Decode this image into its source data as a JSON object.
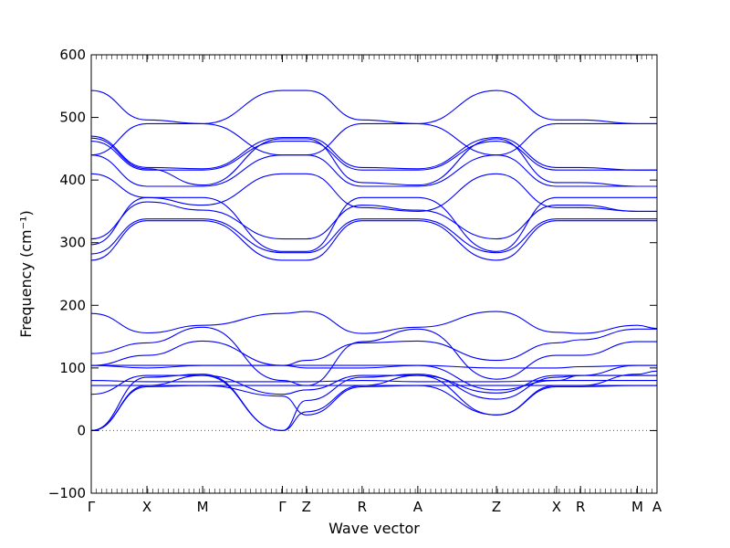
{
  "chart_data": {
    "type": "line",
    "xlabel": "Wave vector",
    "ylabel": "Frequency (cm⁻¹)",
    "ylim": [
      -100,
      600
    ],
    "yticks": [
      -100,
      0,
      100,
      200,
      300,
      400,
      500,
      600
    ],
    "grid": false,
    "zero_line": {
      "y": 0,
      "style": "dotted",
      "color": "#555555"
    },
    "series_color": "#0000ff",
    "path_labels": [
      "Γ",
      "X",
      "M",
      "Γ",
      "Z",
      "R",
      "A",
      "Z",
      "X",
      "R",
      "M",
      "A"
    ],
    "path_positions": [
      0.0,
      0.51,
      1.02,
      1.75,
      1.97,
      2.48,
      2.99,
      3.71,
      4.26,
      4.48,
      5.0,
      5.18
    ],
    "x_range": [
      0.0,
      5.18
    ],
    "bands": [
      {
        "points": [
          [
            0,
            0
          ],
          [
            0.51,
            70
          ],
          [
            1.02,
            72
          ],
          [
            1.75,
            55
          ],
          [
            1.97,
            25
          ],
          [
            2.48,
            70
          ],
          [
            2.99,
            72
          ],
          [
            3.71,
            25
          ],
          [
            4.26,
            70
          ],
          [
            4.48,
            70
          ],
          [
            5.0,
            72
          ],
          [
            5.18,
            72
          ]
        ]
      },
      {
        "points": [
          [
            0,
            0
          ],
          [
            0.51,
            72
          ],
          [
            1.02,
            88
          ],
          [
            1.75,
            0
          ],
          [
            1.97,
            30
          ],
          [
            2.48,
            72
          ],
          [
            2.99,
            88
          ],
          [
            3.71,
            25
          ],
          [
            4.26,
            72
          ],
          [
            4.48,
            72
          ],
          [
            5.0,
            90
          ],
          [
            5.18,
            95
          ]
        ]
      },
      {
        "points": [
          [
            0,
            0
          ],
          [
            0.51,
            85
          ],
          [
            1.02,
            90
          ],
          [
            1.75,
            0
          ],
          [
            1.97,
            48
          ],
          [
            2.48,
            85
          ],
          [
            2.99,
            90
          ],
          [
            3.71,
            50
          ],
          [
            4.26,
            85
          ],
          [
            4.48,
            88
          ],
          [
            5.0,
            88
          ],
          [
            5.18,
            88
          ]
        ]
      },
      {
        "points": [
          [
            0,
            58
          ],
          [
            0.51,
            88
          ],
          [
            1.02,
            88
          ],
          [
            1.75,
            58
          ],
          [
            1.97,
            65
          ],
          [
            2.48,
            88
          ],
          [
            2.99,
            88
          ],
          [
            3.71,
            60
          ],
          [
            4.26,
            88
          ],
          [
            4.48,
            88
          ],
          [
            5.0,
            88
          ],
          [
            5.18,
            88
          ]
        ]
      },
      {
        "points": [
          [
            0,
            72
          ],
          [
            0.51,
            72
          ],
          [
            1.02,
            72
          ],
          [
            1.75,
            72
          ],
          [
            1.97,
            72
          ],
          [
            2.48,
            72
          ],
          [
            2.99,
            72
          ],
          [
            3.71,
            72
          ],
          [
            4.26,
            72
          ],
          [
            4.48,
            72
          ],
          [
            5.0,
            72
          ],
          [
            5.18,
            72
          ]
        ]
      },
      {
        "points": [
          [
            0,
            80
          ],
          [
            0.51,
            78
          ],
          [
            1.02,
            78
          ],
          [
            1.75,
            78
          ],
          [
            1.97,
            78
          ],
          [
            2.48,
            80
          ],
          [
            2.99,
            78
          ],
          [
            3.71,
            78
          ],
          [
            4.26,
            80
          ],
          [
            4.48,
            80
          ],
          [
            5.0,
            80
          ],
          [
            5.18,
            80
          ]
        ]
      },
      {
        "points": [
          [
            0,
            104
          ],
          [
            0.51,
            104
          ],
          [
            1.02,
            104
          ],
          [
            1.75,
            104
          ],
          [
            1.97,
            104
          ],
          [
            2.48,
            104
          ],
          [
            2.99,
            104
          ],
          [
            3.71,
            100
          ],
          [
            4.26,
            100
          ],
          [
            4.48,
            102
          ],
          [
            5.0,
            104
          ],
          [
            5.18,
            104
          ]
        ]
      },
      {
        "points": [
          [
            0,
            104
          ],
          [
            0.51,
            100
          ],
          [
            1.02,
            104
          ],
          [
            1.75,
            104
          ],
          [
            1.97,
            100
          ],
          [
            2.48,
            100
          ],
          [
            2.99,
            104
          ],
          [
            3.71,
            65
          ],
          [
            4.26,
            80
          ],
          [
            4.48,
            88
          ],
          [
            5.0,
            104
          ],
          [
            5.18,
            104
          ]
        ]
      },
      {
        "points": [
          [
            0,
            123
          ],
          [
            0.51,
            140
          ],
          [
            1.02,
            165
          ],
          [
            1.75,
            80
          ],
          [
            1.97,
            72
          ],
          [
            2.48,
            142
          ],
          [
            2.99,
            162
          ],
          [
            3.71,
            82
          ],
          [
            4.26,
            120
          ],
          [
            4.48,
            120
          ],
          [
            5.0,
            142
          ],
          [
            5.18,
            142
          ]
        ]
      },
      {
        "points": [
          [
            0,
            104
          ],
          [
            0.51,
            120
          ],
          [
            1.02,
            143
          ],
          [
            1.75,
            104
          ],
          [
            1.97,
            112
          ],
          [
            2.48,
            140
          ],
          [
            2.99,
            143
          ],
          [
            3.71,
            112
          ],
          [
            4.26,
            140
          ],
          [
            4.48,
            145
          ],
          [
            5.0,
            162
          ],
          [
            5.18,
            162
          ]
        ]
      },
      {
        "points": [
          [
            0,
            187
          ],
          [
            0.51,
            156
          ],
          [
            1.02,
            168
          ],
          [
            1.75,
            187
          ],
          [
            1.97,
            190
          ],
          [
            2.48,
            155
          ],
          [
            2.99,
            165
          ],
          [
            3.71,
            190
          ],
          [
            4.26,
            157
          ],
          [
            4.48,
            155
          ],
          [
            5.0,
            168
          ],
          [
            5.18,
            163
          ]
        ]
      },
      {
        "points": [
          [
            0,
            272
          ],
          [
            0.51,
            335
          ],
          [
            1.02,
            335
          ],
          [
            1.75,
            272
          ],
          [
            1.97,
            272
          ],
          [
            2.48,
            335
          ],
          [
            2.99,
            335
          ],
          [
            3.71,
            272
          ],
          [
            4.26,
            335
          ],
          [
            4.48,
            335
          ],
          [
            5.0,
            335
          ],
          [
            5.18,
            335
          ]
        ]
      },
      {
        "points": [
          [
            0,
            282
          ],
          [
            0.51,
            338
          ],
          [
            1.02,
            338
          ],
          [
            1.75,
            284
          ],
          [
            1.97,
            284
          ],
          [
            2.48,
            338
          ],
          [
            2.99,
            338
          ],
          [
            3.71,
            284
          ],
          [
            4.26,
            338
          ],
          [
            4.48,
            338
          ],
          [
            5.0,
            338
          ],
          [
            5.18,
            338
          ]
        ]
      },
      {
        "points": [
          [
            0,
            297
          ],
          [
            0.51,
            372
          ],
          [
            1.02,
            372
          ],
          [
            1.75,
            286
          ],
          [
            1.97,
            286
          ],
          [
            2.48,
            372
          ],
          [
            2.99,
            372
          ],
          [
            3.71,
            286
          ],
          [
            4.26,
            372
          ],
          [
            4.48,
            372
          ],
          [
            5.0,
            372
          ],
          [
            5.18,
            372
          ]
        ]
      },
      {
        "points": [
          [
            0,
            306
          ],
          [
            0.51,
            365
          ],
          [
            1.02,
            352
          ],
          [
            1.75,
            306
          ],
          [
            1.97,
            306
          ],
          [
            2.48,
            360
          ],
          [
            2.99,
            352
          ],
          [
            3.71,
            306
          ],
          [
            4.26,
            360
          ],
          [
            4.48,
            360
          ],
          [
            5.0,
            350
          ],
          [
            5.18,
            350
          ]
        ]
      },
      {
        "points": [
          [
            0,
            410
          ],
          [
            0.51,
            372
          ],
          [
            1.02,
            360
          ],
          [
            1.75,
            410
          ],
          [
            1.97,
            410
          ],
          [
            2.48,
            356
          ],
          [
            2.99,
            350
          ],
          [
            3.71,
            410
          ],
          [
            4.26,
            356
          ],
          [
            4.48,
            356
          ],
          [
            5.0,
            350
          ],
          [
            5.18,
            350
          ]
        ]
      },
      {
        "points": [
          [
            0,
            440
          ],
          [
            0.51,
            390
          ],
          [
            1.02,
            390
          ],
          [
            1.75,
            440
          ],
          [
            1.97,
            440
          ],
          [
            2.48,
            390
          ],
          [
            2.99,
            390
          ],
          [
            3.71,
            440
          ],
          [
            4.26,
            390
          ],
          [
            4.48,
            390
          ],
          [
            5.0,
            390
          ],
          [
            5.18,
            390
          ]
        ]
      },
      {
        "points": [
          [
            0,
            462
          ],
          [
            0.51,
            416
          ],
          [
            1.02,
            416
          ],
          [
            1.75,
            462
          ],
          [
            1.97,
            462
          ],
          [
            2.48,
            416
          ],
          [
            2.99,
            416
          ],
          [
            3.71,
            462
          ],
          [
            4.26,
            416
          ],
          [
            4.48,
            416
          ],
          [
            5.0,
            416
          ],
          [
            5.18,
            416
          ]
        ]
      },
      {
        "points": [
          [
            0,
            470
          ],
          [
            0.51,
            420
          ],
          [
            1.02,
            418
          ],
          [
            1.75,
            468
          ],
          [
            1.97,
            468
          ],
          [
            2.48,
            420
          ],
          [
            2.99,
            418
          ],
          [
            3.71,
            468
          ],
          [
            4.26,
            420
          ],
          [
            4.48,
            420
          ],
          [
            5.0,
            416
          ],
          [
            5.18,
            416
          ]
        ]
      },
      {
        "points": [
          [
            0,
            467
          ],
          [
            0.51,
            418
          ],
          [
            1.02,
            392
          ],
          [
            1.75,
            466
          ],
          [
            1.97,
            466
          ],
          [
            2.48,
            396
          ],
          [
            2.99,
            392
          ],
          [
            3.71,
            466
          ],
          [
            4.26,
            396
          ],
          [
            4.48,
            396
          ],
          [
            5.0,
            390
          ],
          [
            5.18,
            390
          ]
        ]
      },
      {
        "points": [
          [
            0,
            543
          ],
          [
            0.51,
            496
          ],
          [
            1.02,
            490
          ],
          [
            1.75,
            543
          ],
          [
            1.97,
            543
          ],
          [
            2.48,
            496
          ],
          [
            2.99,
            490
          ],
          [
            3.71,
            543
          ],
          [
            4.26,
            496
          ],
          [
            4.48,
            496
          ],
          [
            5.0,
            490
          ],
          [
            5.18,
            490
          ]
        ]
      },
      {
        "points": [
          [
            0,
            440
          ],
          [
            0.51,
            490
          ],
          [
            1.02,
            490
          ],
          [
            1.75,
            440
          ],
          [
            1.97,
            440
          ],
          [
            2.48,
            490
          ],
          [
            2.99,
            490
          ],
          [
            3.71,
            440
          ],
          [
            4.26,
            490
          ],
          [
            4.48,
            490
          ],
          [
            5.0,
            490
          ],
          [
            5.18,
            490
          ]
        ]
      }
    ]
  }
}
